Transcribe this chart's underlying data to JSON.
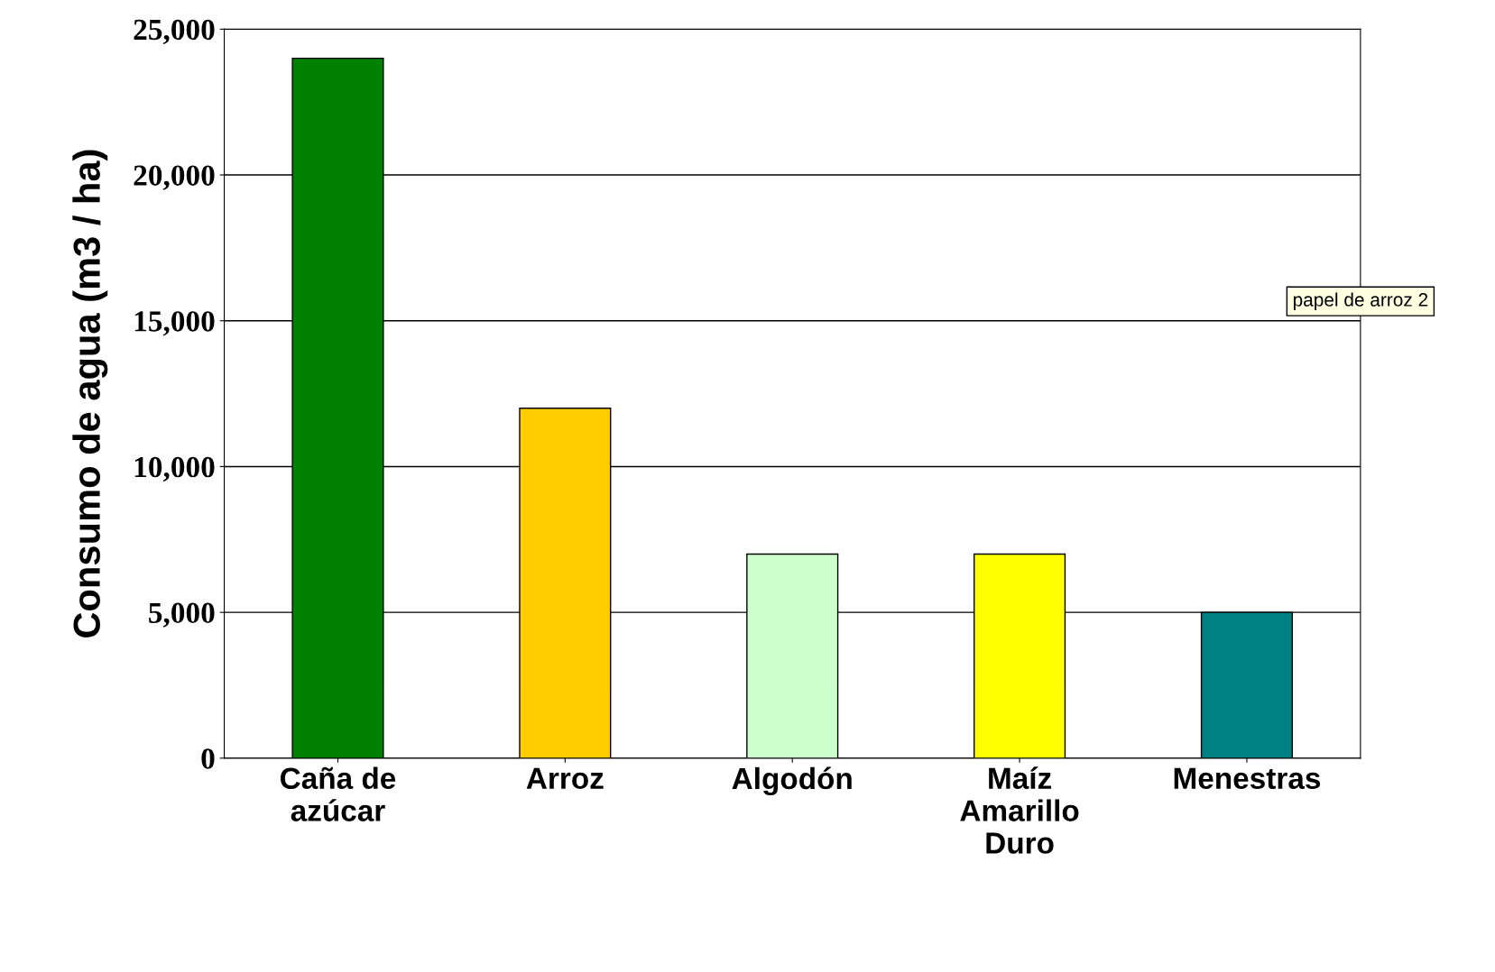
{
  "chart_data": {
    "type": "bar",
    "ylabel": "Consumo de agua (m3 / ha)",
    "categories": [
      "Caña de\nazúcar",
      "Arroz",
      "Algodón",
      "Maíz\nAmarillo\nDuro",
      "Menestras"
    ],
    "values": [
      24000,
      12000,
      7000,
      7000,
      5000
    ],
    "colors": [
      "#008000",
      "#ffcc00",
      "#ccffcc",
      "#ffff00",
      "#008080"
    ],
    "ylim": [
      0,
      25000
    ],
    "yticks": [
      {
        "value": 0,
        "label": "0"
      },
      {
        "value": 5000,
        "label": "5,000"
      },
      {
        "value": 10000,
        "label": "10,000"
      },
      {
        "value": 15000,
        "label": "15,000"
      },
      {
        "value": 20000,
        "label": "20,000"
      },
      {
        "value": 25000,
        "label": "25,000"
      }
    ],
    "grid": "y",
    "annotations": [
      "papel de arroz 2"
    ]
  }
}
